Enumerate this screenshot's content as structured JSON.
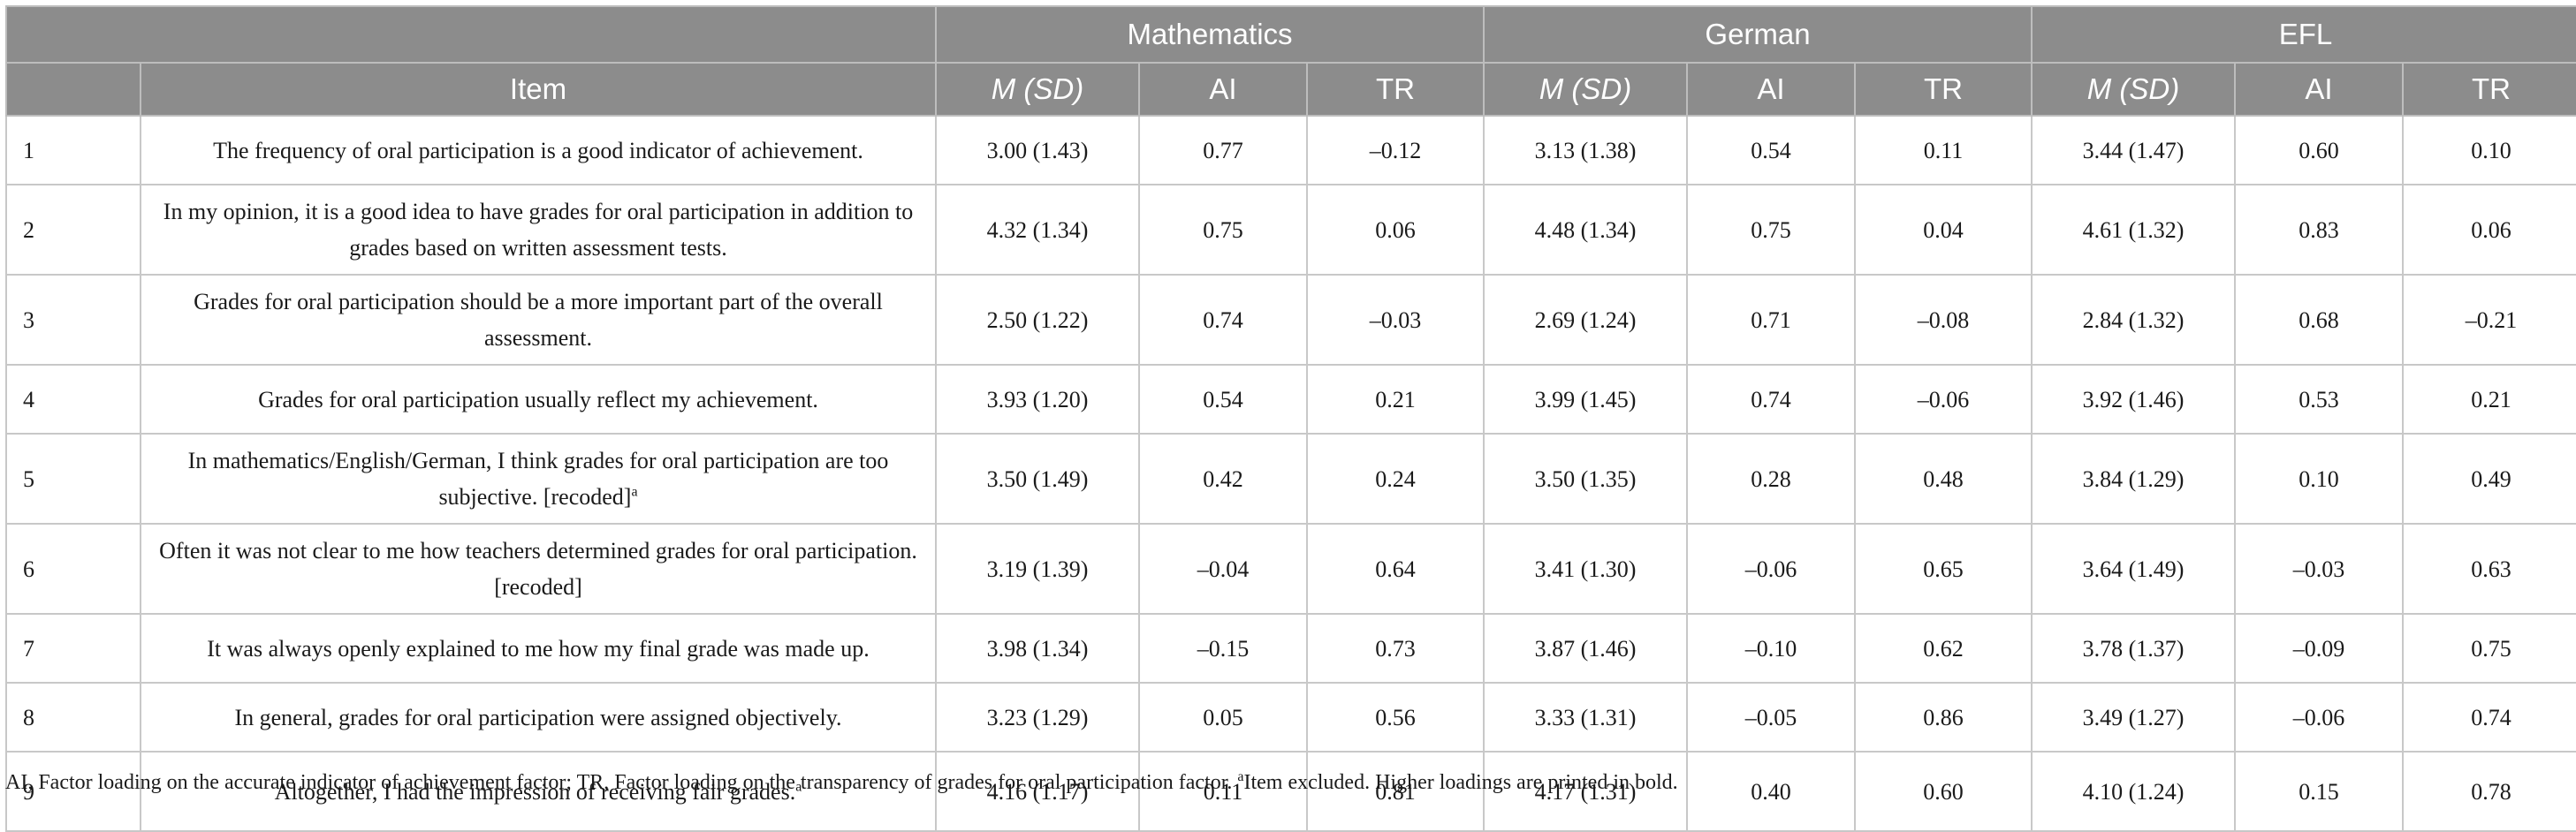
{
  "header": {
    "groups": [
      "Mathematics",
      "German",
      "EFL"
    ],
    "item_label": "Item",
    "col_ms": "M (SD)",
    "col_ai": "AI",
    "col_tr": "TR"
  },
  "rows": [
    {
      "num": "1",
      "item": "The frequency of oral participation is a good indicator of achievement.",
      "sup": "",
      "cells": [
        {
          "v": "3.00 (1.43)",
          "b": false
        },
        {
          "v": "0.77",
          "b": true
        },
        {
          "v": "–0.12",
          "b": false
        },
        {
          "v": "3.13 (1.38)",
          "b": false
        },
        {
          "v": "0.54",
          "b": true
        },
        {
          "v": "0.11",
          "b": false
        },
        {
          "v": "3.44 (1.47)",
          "b": false
        },
        {
          "v": "0.60",
          "b": true
        },
        {
          "v": "0.10",
          "b": false
        }
      ]
    },
    {
      "num": "2",
      "item": "In my opinion, it is a good idea to have grades for oral participation in addition to grades based on written assessment tests.",
      "sup": "",
      "cells": [
        {
          "v": "4.32 (1.34)",
          "b": false
        },
        {
          "v": "0.75",
          "b": true
        },
        {
          "v": "0.06",
          "b": false
        },
        {
          "v": "4.48 (1.34)",
          "b": false
        },
        {
          "v": "0.75",
          "b": true
        },
        {
          "v": "0.04",
          "b": false
        },
        {
          "v": "4.61 (1.32)",
          "b": false
        },
        {
          "v": "0.83",
          "b": true
        },
        {
          "v": "0.06",
          "b": false
        }
      ]
    },
    {
      "num": "3",
      "item": "Grades for oral participation should be a more important part of the overall assessment.",
      "sup": "",
      "cells": [
        {
          "v": "2.50 (1.22)",
          "b": false
        },
        {
          "v": "0.74",
          "b": true
        },
        {
          "v": "–0.03",
          "b": false
        },
        {
          "v": "2.69 (1.24)",
          "b": false
        },
        {
          "v": "0.71",
          "b": true
        },
        {
          "v": "–0.08",
          "b": false
        },
        {
          "v": "2.84 (1.32)",
          "b": false
        },
        {
          "v": "0.68",
          "b": true
        },
        {
          "v": "–0.21",
          "b": false
        }
      ]
    },
    {
      "num": "4",
      "item": "Grades for oral participation usually reflect my achievement.",
      "sup": "",
      "cells": [
        {
          "v": "3.93 (1.20)",
          "b": false
        },
        {
          "v": "0.54",
          "b": true
        },
        {
          "v": "0.21",
          "b": false
        },
        {
          "v": "3.99 (1.45)",
          "b": false
        },
        {
          "v": "0.74",
          "b": true
        },
        {
          "v": "–0.06",
          "b": false
        },
        {
          "v": "3.92 (1.46)",
          "b": false
        },
        {
          "v": "0.53",
          "b": true
        },
        {
          "v": "0.21",
          "b": false
        }
      ]
    },
    {
      "num": "5",
      "item": "In mathematics/English/German, I think grades for oral participation are too subjective. [recoded]",
      "sup": "a",
      "cells": [
        {
          "v": "3.50 (1.49)",
          "b": false
        },
        {
          "v": "0.42",
          "b": true
        },
        {
          "v": "0.24",
          "b": false
        },
        {
          "v": "3.50 (1.35)",
          "b": false
        },
        {
          "v": "0.28",
          "b": false
        },
        {
          "v": "0.48",
          "b": true
        },
        {
          "v": "3.84 (1.29)",
          "b": false
        },
        {
          "v": "0.10",
          "b": false
        },
        {
          "v": "0.49",
          "b": true
        }
      ]
    },
    {
      "num": "6",
      "item": "Often it was not clear to me how teachers determined grades for oral participation. [recoded]",
      "sup": "",
      "cells": [
        {
          "v": "3.19 (1.39)",
          "b": false
        },
        {
          "v": "–0.04",
          "b": false
        },
        {
          "v": "0.64",
          "b": true
        },
        {
          "v": "3.41 (1.30)",
          "b": false
        },
        {
          "v": "–0.06",
          "b": false
        },
        {
          "v": "0.65",
          "b": true
        },
        {
          "v": "3.64 (1.49)",
          "b": false
        },
        {
          "v": "–0.03",
          "b": false
        },
        {
          "v": "0.63",
          "b": true
        }
      ]
    },
    {
      "num": "7",
      "item": "It was always openly explained to me how my final grade was made up.",
      "sup": "",
      "cells": [
        {
          "v": "3.98 (1.34)",
          "b": false
        },
        {
          "v": "–0.15",
          "b": false
        },
        {
          "v": "0.73",
          "b": true
        },
        {
          "v": "3.87 (1.46)",
          "b": false
        },
        {
          "v": "–0.10",
          "b": false
        },
        {
          "v": "0.62",
          "b": true
        },
        {
          "v": "3.78 (1.37)",
          "b": false
        },
        {
          "v": "–0.09",
          "b": false
        },
        {
          "v": "0.75",
          "b": true
        }
      ]
    },
    {
      "num": "8",
      "item": "In general, grades for oral participation were assigned objectively.",
      "sup": "",
      "cells": [
        {
          "v": "3.23 (1.29)",
          "b": false
        },
        {
          "v": "0.05",
          "b": false
        },
        {
          "v": "0.56",
          "b": true
        },
        {
          "v": "3.33 (1.31)",
          "b": false
        },
        {
          "v": "–0.05",
          "b": false
        },
        {
          "v": "0.86",
          "b": true
        },
        {
          "v": "3.49 (1.27)",
          "b": false
        },
        {
          "v": "–0.06",
          "b": false
        },
        {
          "v": "0.74",
          "b": true
        }
      ]
    },
    {
      "num": "9",
      "item": "Altogether, I had the impression of receiving fair grades.",
      "sup": "a",
      "cells": [
        {
          "v": "4.16 (1.17)",
          "b": false
        },
        {
          "v": "0.11",
          "b": false
        },
        {
          "v": "0.81",
          "b": true
        },
        {
          "v": "4.17 (1.31)",
          "b": false
        },
        {
          "v": "0.40",
          "b": false
        },
        {
          "v": "0.60",
          "b": true
        },
        {
          "v": "4.10 (1.24)",
          "b": false
        },
        {
          "v": "0.15",
          "b": false
        },
        {
          "v": "0.78",
          "b": true
        }
      ]
    }
  ],
  "footnote": {
    "text": "AI, Factor loading on the accurate indicator of achievement factor; TR, Factor loading on the transparency of grades for oral participation factor. ",
    "sup": "a",
    "tail": "Item excluded. Higher loadings are printed in bold."
  }
}
